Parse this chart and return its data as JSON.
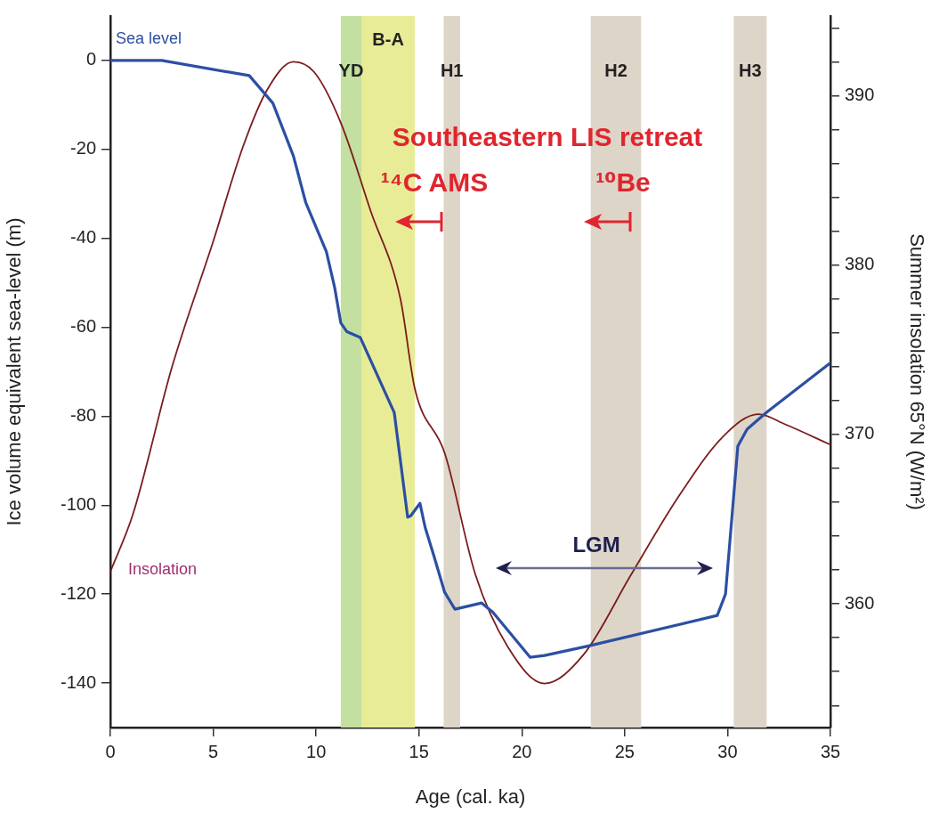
{
  "chart_data": {
    "type": "line",
    "xlabel": "Age (cal. ka)",
    "ylabel": "Ice volume equivalent sea-level (m)",
    "y2label": "Summer insolation 65°N (W/m²)",
    "xlim": [
      0,
      35
    ],
    "xticks": [
      0,
      5,
      10,
      15,
      20,
      25,
      30,
      35
    ],
    "ylim": [
      -150,
      10
    ],
    "yticks": [
      -140,
      -120,
      -100,
      -80,
      -60,
      -40,
      -20,
      0
    ],
    "y2lim": [
      352.7,
      394.7
    ],
    "y2ticks": [
      {
        "value": 354,
        "label": null
      },
      {
        "value": 356,
        "label": null
      },
      {
        "value": 358,
        "label": null
      },
      360,
      {
        "value": 362,
        "label": null
      },
      {
        "value": 364,
        "label": null
      },
      {
        "value": 366,
        "label": null
      },
      {
        "value": 368,
        "label": null
      },
      370,
      {
        "value": 372,
        "label": null
      },
      {
        "value": 374,
        "label": null
      },
      {
        "value": 376,
        "label": null
      },
      {
        "value": 378,
        "label": null
      },
      380,
      {
        "value": 382,
        "label": null
      },
      {
        "value": 384,
        "label": null
      },
      {
        "value": 386,
        "label": null
      },
      {
        "value": 388,
        "label": null
      },
      390,
      {
        "value": 392,
        "label": null
      },
      {
        "value": 394,
        "label": null
      }
    ],
    "grid": false,
    "legend": false,
    "marker": "none",
    "line_style": "solid",
    "series": [
      {
        "name": "Sea level",
        "color": "#2c4fa3",
        "x": [
          0,
          2.5,
          6.75,
          7.9,
          8.9,
          9.5,
          10.5,
          10.9,
          11.2,
          11.5,
          12.15,
          13.8,
          14.45,
          14.6,
          15.05,
          15.3,
          15.7,
          16.25,
          16.75,
          18.05,
          18.6,
          20.4,
          21.1,
          23.2,
          29.5,
          29.9,
          30.5,
          30.95,
          31.9,
          35
        ],
        "values": [
          0,
          0,
          -3.4,
          -9.6,
          -21.5,
          -32,
          -43,
          -51,
          -59,
          -61,
          -62.3,
          -79.2,
          -102.7,
          -102.4,
          -99.6,
          -105,
          -111,
          -119.6,
          -123.4,
          -122,
          -124.1,
          -134.2,
          -133.8,
          -131.7,
          -124.8,
          -120,
          -86.7,
          -82.9,
          -79.1,
          -68
        ]
      },
      {
        "name": "Insolation",
        "color": "#7b1c1c",
        "axis": "y2",
        "x": [
          0,
          1.1,
          3.0,
          5.0,
          6.45,
          7.6,
          8.9,
          9.9,
          11.2,
          12.65,
          14.1,
          14.8,
          16.25,
          17.75,
          19.3,
          21.1,
          23.0,
          25.3,
          27.6,
          29.8,
          31.5,
          32.8,
          35
        ],
        "values": [
          361.9,
          365.3,
          374,
          381.4,
          387,
          390.3,
          392,
          391.4,
          388.4,
          383.2,
          378,
          372.7,
          368.9,
          361.7,
          357.5,
          355.3,
          357,
          361.7,
          366.3,
          369.9,
          371.2,
          370.6,
          369.4
        ]
      }
    ],
    "bands": [
      {
        "axis": "x",
        "from": 11.2,
        "to": 12.2,
        "label": "YD",
        "color": "#c3e0a0"
      },
      {
        "axis": "x",
        "from": 12.2,
        "to": 14.8,
        "label": "B-A",
        "color": "#e8ec97"
      },
      {
        "axis": "x",
        "from": 16.2,
        "to": 17.0,
        "label": "H1",
        "color": "#ddd5c8"
      },
      {
        "axis": "x",
        "from": 23.35,
        "to": 25.8,
        "label": "H2",
        "color": "#ddd5c8"
      },
      {
        "axis": "x",
        "from": 30.3,
        "to": 31.9,
        "label": "H3",
        "color": "#ddd5c8"
      }
    ],
    "annotations": [
      "Southeastern LIS retreat",
      "¹⁴C AMS",
      "¹⁰Be",
      "LGM"
    ]
  }
}
